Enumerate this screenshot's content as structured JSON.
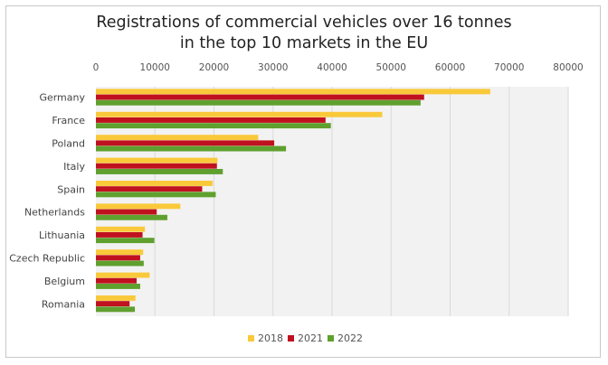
{
  "chart_data": {
    "type": "bar",
    "orientation": "horizontal",
    "title_line1": "Registrations of commercial vehicles over 16 tonnes",
    "title_line2": "in the top 10 markets in the EU",
    "categories": [
      "Germany",
      "France",
      "Poland",
      "Italy",
      "Spain",
      "Netherlands",
      "Lithuania",
      "Czech Republic",
      "Belgium",
      "Romania"
    ],
    "series": [
      {
        "name": "2018",
        "color": "#f9c93a",
        "values": [
          66800,
          48500,
          27500,
          20600,
          19800,
          14300,
          8300,
          8000,
          9100,
          6700
        ]
      },
      {
        "name": "2021",
        "color": "#c0111f",
        "values": [
          55600,
          38900,
          30200,
          20500,
          18000,
          10300,
          7900,
          7500,
          6900,
          5700
        ]
      },
      {
        "name": "2022",
        "color": "#5fa02e",
        "values": [
          55000,
          39800,
          32200,
          21500,
          20300,
          12100,
          9900,
          8100,
          7500,
          6600
        ]
      }
    ],
    "xlim": [
      0,
      80000
    ],
    "xticks": [
      0,
      10000,
      20000,
      30000,
      40000,
      50000,
      60000,
      70000,
      80000
    ],
    "axis_position": "top",
    "grid": true,
    "legend_position": "bottom"
  }
}
